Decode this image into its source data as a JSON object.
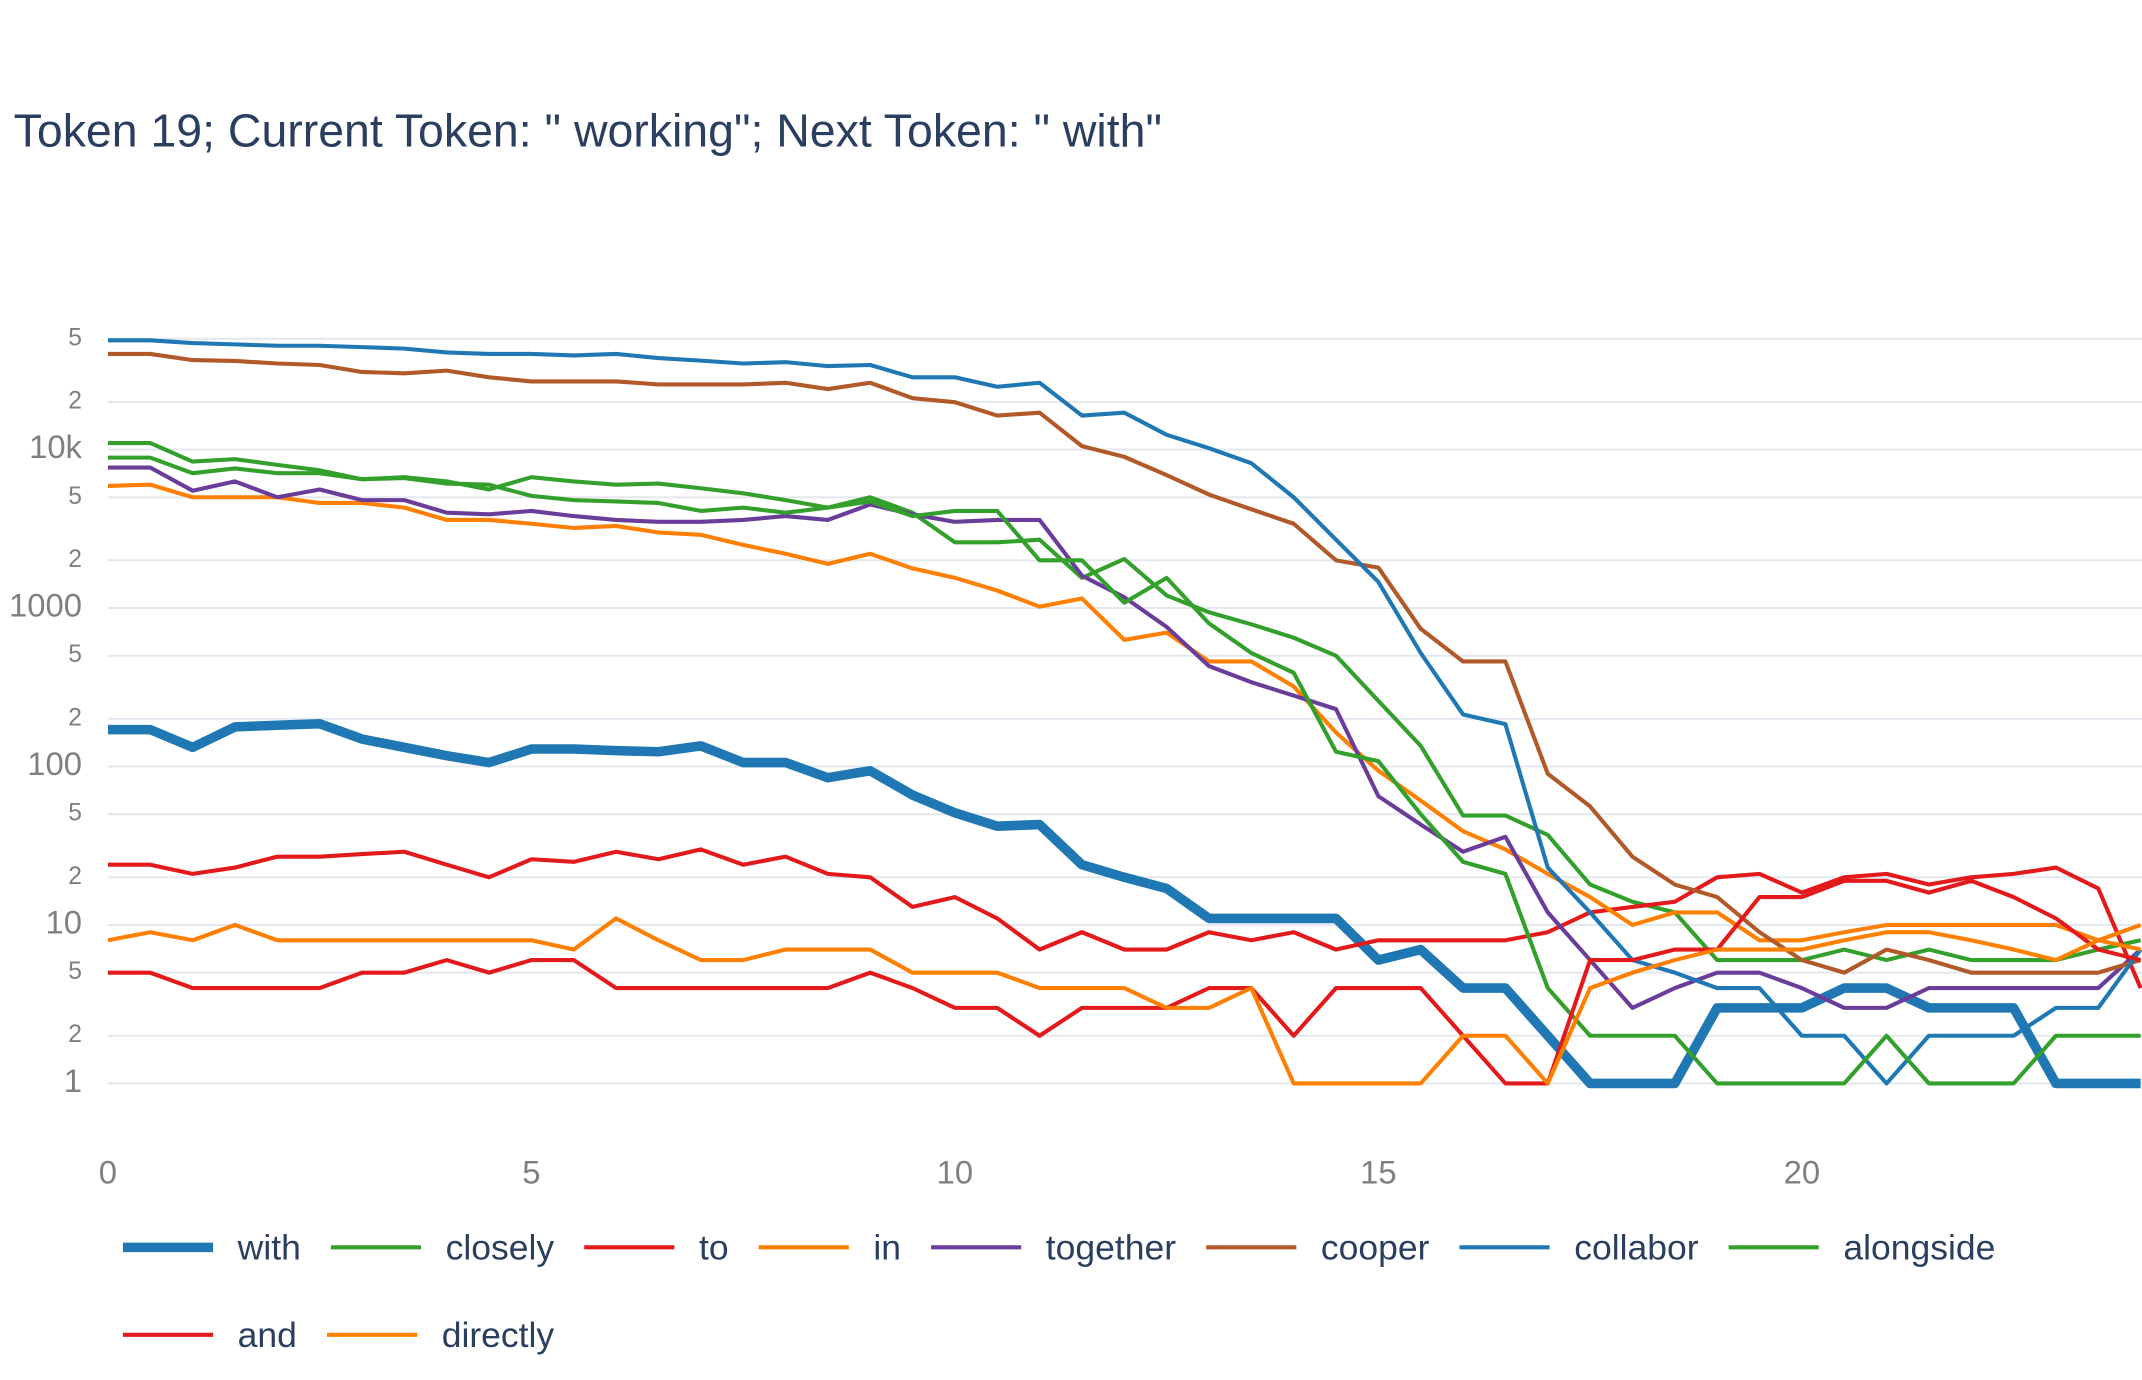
{
  "chart_data": {
    "type": "line",
    "title": "Token 19; Current Token: \" working\"; Next Token: \" with\"",
    "log_y": true,
    "grid": true,
    "xlim": [
      0,
      24
    ],
    "xticks": [
      0,
      5,
      10,
      15,
      20
    ],
    "ylim": [
      0.4,
      100000
    ],
    "yticks": [
      1,
      2,
      5,
      10,
      {
        "value": 20,
        "label": "2"
      },
      {
        "value": 50,
        "label": "5"
      },
      100,
      {
        "value": 200,
        "label": "2"
      },
      {
        "value": 500,
        "label": "5"
      },
      1000,
      {
        "value": 2000,
        "label": "2"
      },
      {
        "value": 5000,
        "label": "5"
      },
      {
        "value": 10000,
        "label": "10k"
      },
      {
        "value": 20000,
        "label": "2"
      },
      {
        "value": 50000,
        "label": "5"
      }
    ],
    "x": [
      0,
      0.5,
      1,
      1.5,
      2,
      2.5,
      3,
      3.5,
      4,
      4.5,
      5,
      5.5,
      6,
      6.5,
      7,
      7.5,
      8,
      8.5,
      9,
      9.5,
      10,
      10.5,
      11,
      11.5,
      12,
      12.5,
      13,
      13.5,
      14,
      14.5,
      15,
      15.5,
      16,
      16.5,
      17,
      17.5,
      18,
      18.5,
      19,
      19.5,
      20,
      20.5,
      21,
      21.5,
      22,
      22.5,
      23,
      23.5,
      24
    ],
    "series": [
      {
        "name": "with",
        "color": "#1f78b4",
        "line_width": 7,
        "values": [
          171,
          171,
          132,
          178,
          182,
          186,
          149,
          132,
          117,
          106,
          129,
          129,
          126,
          124,
          135,
          106,
          106,
          85,
          94,
          66,
          51,
          42,
          43,
          24,
          20,
          17,
          11,
          11,
          11,
          11,
          6,
          7,
          4,
          4,
          2,
          1,
          1,
          1,
          3,
          3,
          3,
          4,
          4,
          3,
          3,
          3,
          1,
          1,
          1
        ]
      },
      {
        "name": "closely",
        "color": "#33a02c",
        "line_width": 3,
        "values": [
          11000,
          11000,
          8400,
          8700,
          8000,
          7400,
          6500,
          6700,
          6300,
          5600,
          6700,
          6300,
          6000,
          6100,
          5700,
          5300,
          4800,
          4300,
          5000,
          4000,
          2600,
          2600,
          2700,
          1550,
          2040,
          1200,
          940,
          790,
          650,
          500,
          260,
          135,
          49,
          49,
          37,
          18,
          14,
          12,
          6,
          6,
          6,
          7,
          6,
          7,
          6,
          6,
          6,
          7,
          8
        ]
      },
      {
        "name": "to",
        "color": "#e31a1c",
        "line_width": 3,
        "values": [
          24,
          24,
          21,
          23,
          27,
          27,
          28,
          29,
          24,
          20,
          26,
          25,
          29,
          26,
          30,
          24,
          27,
          21,
          20,
          13,
          15,
          11,
          7,
          9,
          7,
          7,
          9,
          8,
          9,
          7,
          8,
          8,
          8,
          8,
          9,
          12,
          13,
          14,
          20,
          21,
          16,
          20,
          21,
          18,
          20,
          21,
          23,
          17,
          4
        ]
      },
      {
        "name": "in",
        "color": "#ff7f00",
        "line_width": 3,
        "values": [
          5900,
          6000,
          5000,
          5000,
          5000,
          4600,
          4600,
          4300,
          3600,
          3600,
          3400,
          3200,
          3300,
          3000,
          2900,
          2500,
          2200,
          1900,
          2200,
          1780,
          1550,
          1290,
          1020,
          1150,
          630,
          700,
          460,
          460,
          320,
          164,
          94,
          61,
          39,
          30,
          21,
          15,
          10,
          12,
          12,
          8,
          8,
          9,
          10,
          10,
          10,
          10,
          10,
          8,
          10
        ]
      },
      {
        "name": "together",
        "color": "#6a3d9a",
        "line_width": 3,
        "values": [
          7700,
          7700,
          5500,
          6300,
          5000,
          5600,
          4800,
          4800,
          4000,
          3900,
          4100,
          3800,
          3600,
          3500,
          3500,
          3600,
          3800,
          3600,
          4500,
          3900,
          3500,
          3600,
          3600,
          1600,
          1170,
          760,
          430,
          340,
          280,
          230,
          65,
          43,
          29,
          36,
          12,
          6,
          3,
          4,
          5,
          5,
          4,
          3,
          3,
          4,
          4,
          4,
          4,
          4,
          7
        ]
      },
      {
        "name": "cooper",
        "color": "#b15928",
        "line_width": 3,
        "values": [
          40100,
          40100,
          36700,
          36300,
          34900,
          34200,
          30900,
          30300,
          31500,
          28600,
          26900,
          26900,
          26900,
          25800,
          25800,
          25800,
          26400,
          24100,
          26400,
          21100,
          19900,
          16400,
          17100,
          10500,
          9000,
          6900,
          5200,
          4200,
          3400,
          2000,
          1800,
          740,
          460,
          460,
          90,
          56,
          27,
          18,
          15,
          9,
          6,
          5,
          7,
          6,
          5,
          5,
          5,
          5,
          6
        ]
      },
      {
        "name": "collabor",
        "color": "#1f78b4",
        "line_width": 3,
        "values": [
          48900,
          48900,
          47000,
          46100,
          45200,
          45200,
          44300,
          43400,
          41000,
          40100,
          40100,
          39300,
          40100,
          37800,
          36400,
          34900,
          35600,
          33600,
          34200,
          28600,
          28600,
          24900,
          26400,
          16400,
          17100,
          12400,
          10200,
          8200,
          5000,
          2700,
          1460,
          520,
          213,
          185,
          23,
          12,
          6,
          5,
          4,
          4,
          2,
          2,
          1,
          2,
          2,
          2,
          3,
          3,
          7
        ]
      },
      {
        "name": "alongside",
        "color": "#33a02c",
        "line_width": 3,
        "values": [
          8900,
          8900,
          7100,
          7600,
          7100,
          7100,
          6500,
          6600,
          6100,
          6000,
          5100,
          4800,
          4700,
          4600,
          4100,
          4300,
          4000,
          4300,
          4700,
          3800,
          4100,
          4100,
          2000,
          2000,
          1080,
          1550,
          800,
          520,
          390,
          124,
          108,
          50,
          25,
          21,
          4,
          2,
          2,
          2,
          1,
          1,
          1,
          1,
          2,
          1,
          1,
          1,
          2,
          2,
          2
        ]
      },
      {
        "name": "and",
        "color": "#e31a1c",
        "line_width": 3,
        "values": [
          5,
          5,
          4,
          4,
          4,
          4,
          5,
          5,
          6,
          5,
          6,
          6,
          4,
          4,
          4,
          4,
          4,
          4,
          5,
          4,
          3,
          3,
          2,
          3,
          3,
          3,
          4,
          4,
          2,
          4,
          4,
          4,
          2,
          1,
          1,
          6,
          6,
          7,
          7,
          15,
          15,
          19,
          19,
          16,
          19,
          15,
          11,
          7,
          6
        ]
      },
      {
        "name": "directly",
        "color": "#ff7f00",
        "line_width": 3,
        "values": [
          8,
          9,
          8,
          10,
          8,
          8,
          8,
          8,
          8,
          8,
          8,
          7,
          11,
          8,
          6,
          6,
          7,
          7,
          7,
          5,
          5,
          5,
          4,
          4,
          4,
          3,
          3,
          4,
          1,
          1,
          1,
          1,
          2,
          2,
          1,
          4,
          5,
          6,
          7,
          7,
          7,
          8,
          9,
          9,
          8,
          7,
          6,
          8,
          7
        ]
      }
    ]
  }
}
